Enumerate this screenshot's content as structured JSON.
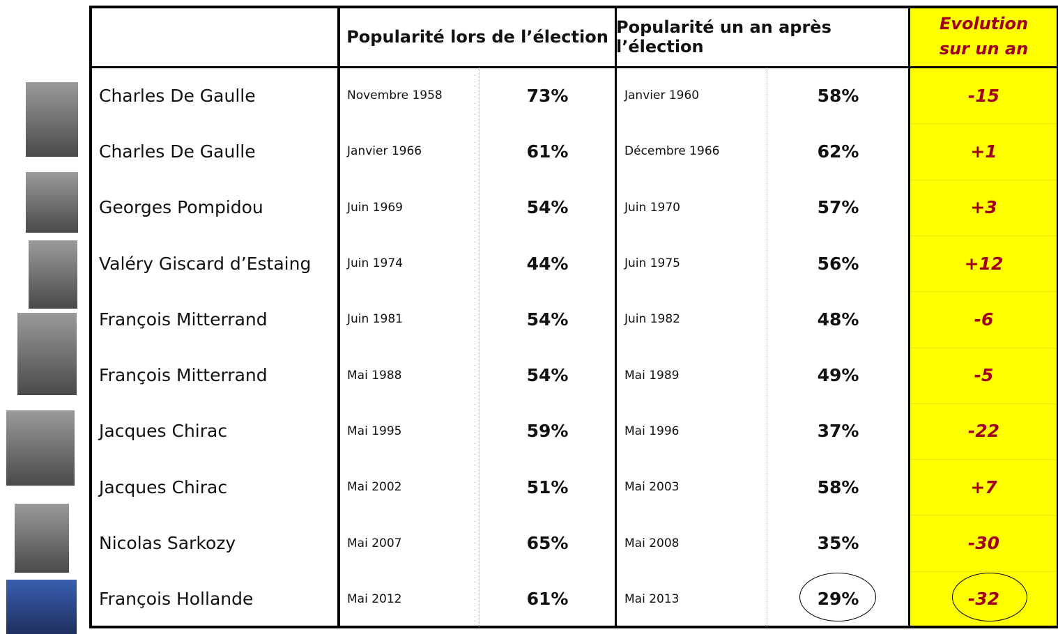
{
  "table": {
    "header": {
      "col1": "Popularité lors de l’élection",
      "col2": "Popularité un an après l’élection",
      "col3": [
        "Evolution",
        "sur un an"
      ]
    },
    "rows": [
      [
        "Charles De Gaulle",
        "Novembre 1958",
        "73%",
        "Janvier 1960",
        "58%",
        "-15"
      ],
      [
        "Charles De Gaulle",
        "Janvier 1966",
        "61%",
        "Décembre 1966",
        "62%",
        "+1"
      ],
      [
        "Georges Pompidou",
        "Juin 1969",
        "54%",
        "Juin 1970",
        "57%",
        "+3"
      ],
      [
        "Valéry Giscard d’Estaing",
        "Juin 1974",
        "44%",
        "Juin 1975",
        "56%",
        "+12"
      ],
      [
        "François Mitterrand",
        "Juin 1981",
        "54%",
        "Juin 1982",
        "48%",
        "-6"
      ],
      [
        "François Mitterrand",
        "Mai 1988",
        "54%",
        "Mai 1989",
        "49%",
        "-5"
      ],
      [
        "Jacques Chirac",
        "Mai 1995",
        "59%",
        "Mai 1996",
        "37%",
        "-22"
      ],
      [
        "Jacques Chirac",
        "Mai 2002",
        "51%",
        "Mai 2003",
        "58%",
        "+7"
      ],
      [
        "Nicolas Sarkozy",
        "Mai 2007",
        "65%",
        "Mai 2008",
        "35%",
        "-30"
      ],
      [
        "François Hollande",
        "Mai 2012",
        "61%",
        "Mai 2013",
        "29%",
        "-32"
      ]
    ]
  }
}
